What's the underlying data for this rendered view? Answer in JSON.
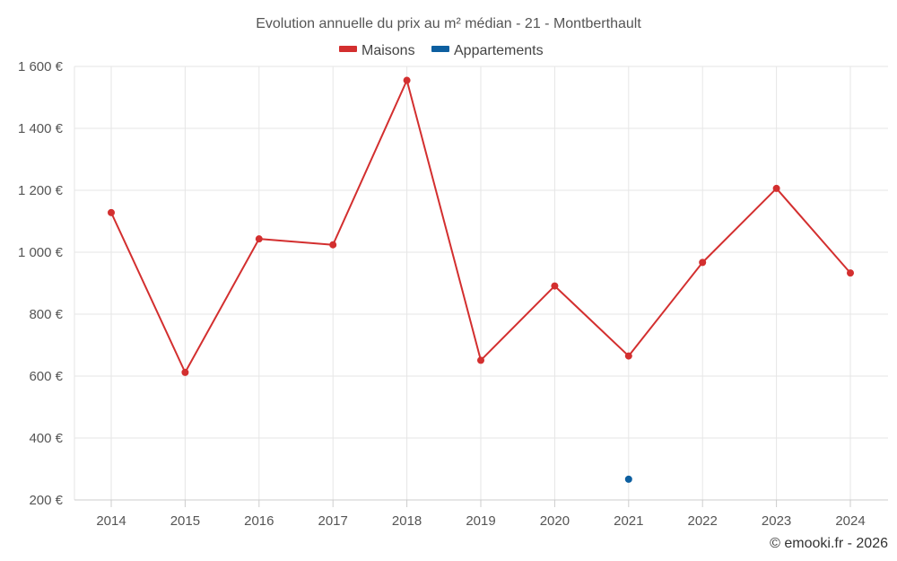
{
  "chart_data": {
    "type": "line",
    "title": "Evolution annuelle du prix au m² médian - 21 - Montberthault",
    "categories": [
      "2014",
      "2015",
      "2016",
      "2017",
      "2018",
      "2019",
      "2020",
      "2021",
      "2022",
      "2023",
      "2024"
    ],
    "y_tick_labels": [
      "200 €",
      "400 €",
      "600 €",
      "800 €",
      "1 000 €",
      "1 200 €",
      "1 400 €",
      "1 600 €"
    ],
    "y_ticks": [
      200,
      400,
      600,
      800,
      1000,
      1200,
      1400,
      1600
    ],
    "ylim": [
      200,
      1600
    ],
    "xlabel": "",
    "ylabel": "",
    "grid": true,
    "legend_position": "top-center",
    "series": [
      {
        "name": "Maisons",
        "color": "#d32f2f",
        "values": [
          1128,
          612,
          1043,
          1024,
          1555,
          651,
          891,
          665,
          967,
          1206,
          933
        ]
      },
      {
        "name": "Appartements",
        "color": "#0d5fa0",
        "values": [
          null,
          null,
          null,
          null,
          null,
          null,
          null,
          267,
          null,
          null,
          null
        ]
      }
    ],
    "credit": "© emooki.fr - 2026"
  }
}
